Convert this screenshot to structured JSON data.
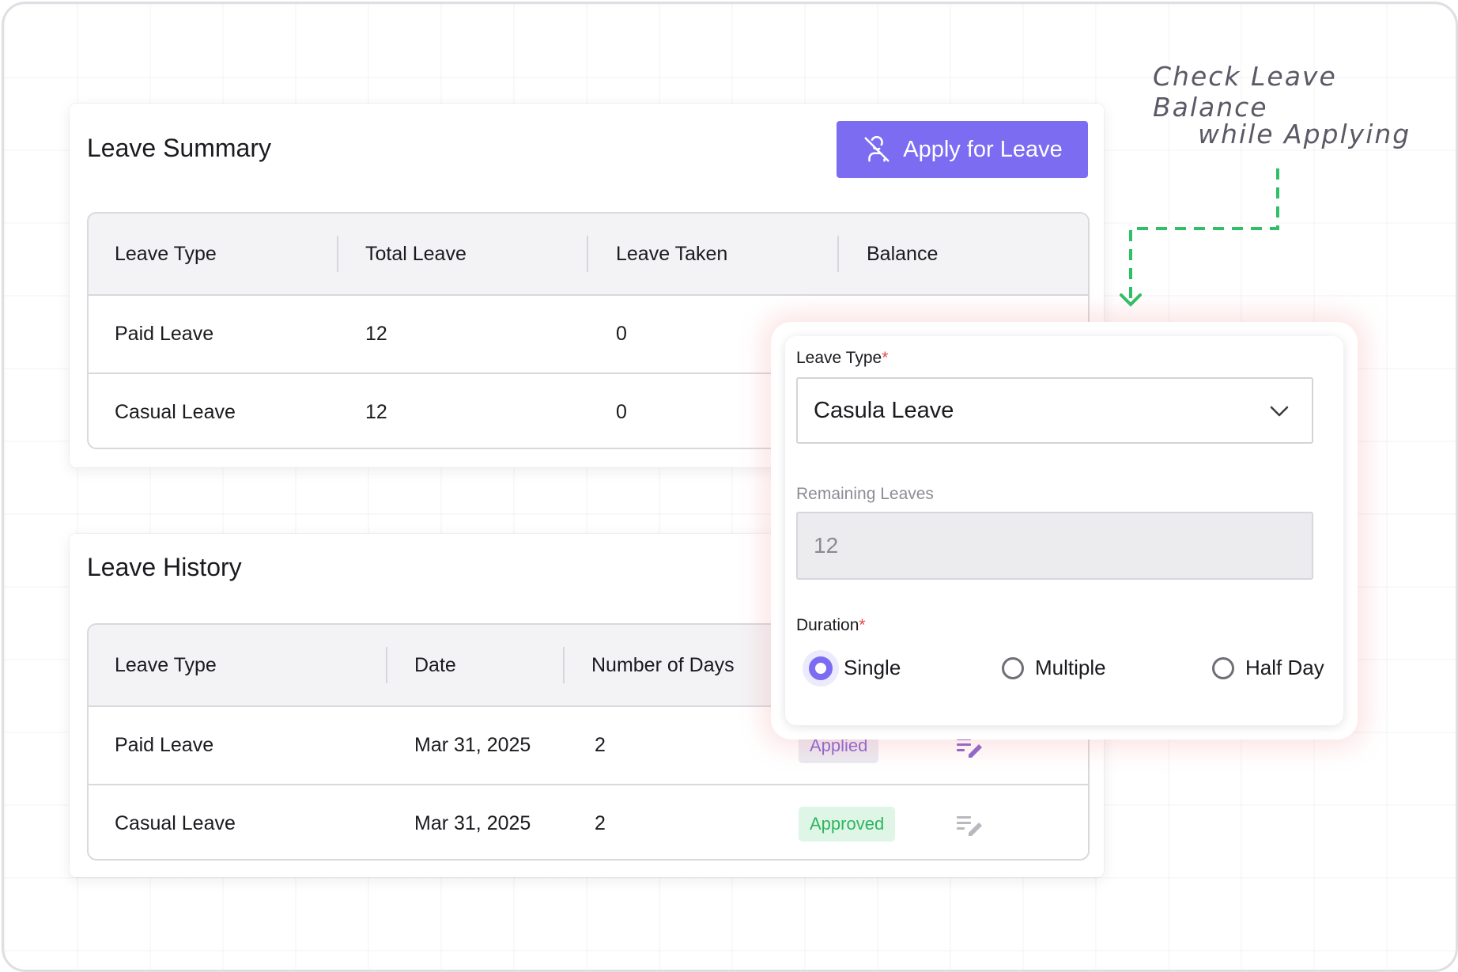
{
  "annotation": {
    "line1": "Check Leave Balance",
    "line2": "while Applying"
  },
  "summary": {
    "title": "Leave Summary",
    "apply_button": "Apply for Leave",
    "columns": [
      "Leave Type",
      "Total Leave",
      "Leave Taken",
      "Balance"
    ],
    "rows": [
      {
        "type": "Paid Leave",
        "total": "12",
        "taken": "0"
      },
      {
        "type": "Casual Leave",
        "total": "12",
        "taken": "0"
      }
    ]
  },
  "history": {
    "title": "Leave History",
    "columns": [
      "Leave Type",
      "Date",
      "Number of Days"
    ],
    "rows": [
      {
        "type": "Paid Leave",
        "date": "Mar 31, 2025",
        "days": "2",
        "status": "Applied"
      },
      {
        "type": "Casual Leave",
        "date": "Mar 31, 2025",
        "days": "2",
        "status": "Approved"
      }
    ]
  },
  "form": {
    "leave_type_label": "Leave Type",
    "required_mark": "*",
    "leave_type_value": "Casula Leave",
    "remaining_label": "Remaining Leaves",
    "remaining_value": "12",
    "duration_label": "Duration",
    "duration_options": [
      "Single",
      "Multiple",
      "Half Day"
    ],
    "duration_selected": "Single"
  },
  "colors": {
    "accent": "#7b6cf2",
    "connector": "#2fbf66",
    "applied_badge": "#8a63d2",
    "approved_badge": "#2fb55f",
    "required": "#e5484d"
  },
  "icons": {
    "apply_button": "user-off-icon",
    "select": "chevron-down-icon",
    "row_action": "edit-list-icon"
  }
}
